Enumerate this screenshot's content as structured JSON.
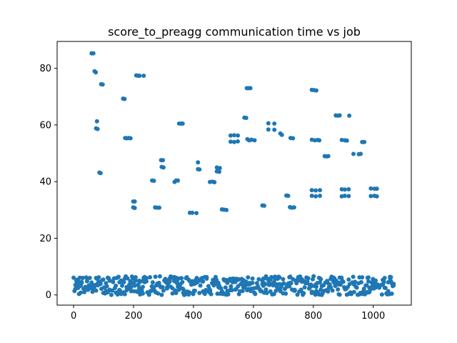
{
  "chart_data": {
    "type": "scatter",
    "title": "score_to_preagg communication time vs job",
    "xlabel": "",
    "ylabel": "",
    "xlim": [
      -55,
      1127
    ],
    "ylim": [
      -3.6,
      89.5
    ],
    "xticks": [
      0,
      200,
      400,
      600,
      800,
      1000
    ],
    "yticks": [
      0,
      20,
      40,
      60,
      80
    ],
    "marker_color": "#1f77b4",
    "grid": false,
    "legend": "none",
    "series": [
      {
        "points": [
          [
            60,
            85.3
          ],
          [
            66,
            85.3
          ],
          [
            70,
            79
          ],
          [
            74,
            78.6
          ],
          [
            75,
            58.8
          ],
          [
            78,
            61.3
          ],
          [
            80,
            58.6
          ],
          [
            86,
            43.2
          ],
          [
            90,
            43
          ],
          [
            92,
            74.4
          ],
          [
            97,
            74.3
          ],
          [
            165,
            69.3
          ],
          [
            170,
            69.2
          ],
          [
            172,
            55.4
          ],
          [
            178,
            55.3
          ],
          [
            184,
            55.4
          ],
          [
            190,
            55.3
          ],
          [
            199,
            33
          ],
          [
            204,
            33
          ],
          [
            199,
            30.9
          ],
          [
            204,
            30.7
          ],
          [
            209,
            77.5
          ],
          [
            215,
            77.4
          ],
          [
            220,
            77.4
          ],
          [
            234,
            77.4
          ],
          [
            262,
            40.4
          ],
          [
            268,
            40.3
          ],
          [
            272,
            30.9
          ],
          [
            278,
            30.8
          ],
          [
            286,
            30.8
          ],
          [
            292,
            47.6
          ],
          [
            298,
            47.6
          ],
          [
            294,
            45.2
          ],
          [
            300,
            45
          ],
          [
            337,
            39.9
          ],
          [
            342,
            40.4
          ],
          [
            348,
            40.4
          ],
          [
            352,
            60.5
          ],
          [
            358,
            60.5
          ],
          [
            364,
            60.5
          ],
          [
            388,
            29
          ],
          [
            396,
            29
          ],
          [
            410,
            28.9
          ],
          [
            415,
            46.8
          ],
          [
            415,
            44.4
          ],
          [
            420,
            44.3
          ],
          [
            455,
            39.9
          ],
          [
            464,
            40
          ],
          [
            470,
            39.8
          ],
          [
            478,
            45
          ],
          [
            483,
            44.6
          ],
          [
            488,
            44.8
          ],
          [
            478,
            43.6
          ],
          [
            486,
            43.5
          ],
          [
            495,
            30.2
          ],
          [
            502,
            30.1
          ],
          [
            510,
            30
          ],
          [
            524,
            56.3
          ],
          [
            524,
            54.1
          ],
          [
            536,
            56.4
          ],
          [
            536,
            54
          ],
          [
            548,
            56.3
          ],
          [
            548,
            54.2
          ],
          [
            570,
            62.6
          ],
          [
            576,
            62.5
          ],
          [
            578,
            73
          ],
          [
            584,
            73
          ],
          [
            590,
            73
          ],
          [
            580,
            55
          ],
          [
            586,
            54.6
          ],
          [
            594,
            54.8
          ],
          [
            604,
            54.6
          ],
          [
            630,
            31.6
          ],
          [
            636,
            31.5
          ],
          [
            650,
            60.6
          ],
          [
            650,
            58.4
          ],
          [
            670,
            60.5
          ],
          [
            670,
            58.3
          ],
          [
            690,
            57
          ],
          [
            695,
            56.5
          ],
          [
            710,
            35.1
          ],
          [
            716,
            35
          ],
          [
            722,
            31
          ],
          [
            728,
            30.8
          ],
          [
            736,
            30.9
          ],
          [
            724,
            55.4
          ],
          [
            732,
            55.3
          ],
          [
            795,
            72.4
          ],
          [
            802,
            72.3
          ],
          [
            810,
            72.2
          ],
          [
            795,
            54.8
          ],
          [
            805,
            54.6
          ],
          [
            815,
            54.7
          ],
          [
            820,
            54.6
          ],
          [
            795,
            37
          ],
          [
            808,
            36.9
          ],
          [
            822,
            37
          ],
          [
            795,
            35
          ],
          [
            808,
            34.8
          ],
          [
            822,
            35
          ],
          [
            838,
            49
          ],
          [
            845,
            48.9
          ],
          [
            850,
            49
          ],
          [
            875,
            63.4
          ],
          [
            882,
            63.3
          ],
          [
            888,
            63.4
          ],
          [
            920,
            63.3
          ],
          [
            895,
            54.7
          ],
          [
            905,
            54.6
          ],
          [
            912,
            54.5
          ],
          [
            895,
            37.3
          ],
          [
            905,
            37.2
          ],
          [
            918,
            37.3
          ],
          [
            895,
            34.8
          ],
          [
            905,
            35
          ],
          [
            918,
            34.9
          ],
          [
            934,
            49.8
          ],
          [
            952,
            49.7
          ],
          [
            958,
            49.8
          ],
          [
            963,
            54
          ],
          [
            970,
            54
          ],
          [
            992,
            37.6
          ],
          [
            1004,
            37.5
          ],
          [
            1012,
            37.5
          ],
          [
            992,
            34.9
          ],
          [
            1004,
            35
          ],
          [
            1012,
            34.8
          ]
        ]
      }
    ]
  }
}
